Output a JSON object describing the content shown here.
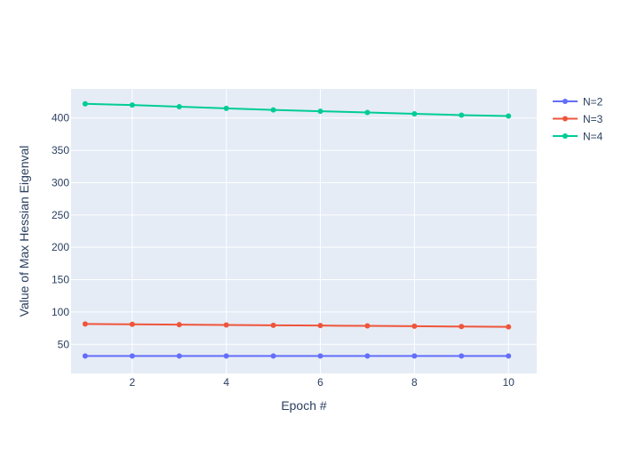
{
  "chart_data": {
    "type": "line",
    "title": "",
    "xlabel": "Epoch #",
    "ylabel": "Value of Max Hessian Eigenval",
    "xlim": [
      0.7,
      10.6
    ],
    "ylim": [
      5,
      445
    ],
    "xticks": [
      2,
      4,
      6,
      8,
      10
    ],
    "yticks": [
      50,
      100,
      150,
      200,
      250,
      300,
      350,
      400
    ],
    "grid": true,
    "legend_position": "top-right",
    "x": [
      1,
      2,
      3,
      4,
      5,
      6,
      7,
      8,
      9,
      10
    ],
    "series": [
      {
        "name": "N=2",
        "color": "#636efa",
        "values": [
          32,
          32,
          32,
          32,
          32,
          32,
          32,
          32,
          32,
          32
        ]
      },
      {
        "name": "N=3",
        "color": "#ef553b",
        "values": [
          81.5,
          81,
          80.5,
          80,
          79.5,
          79,
          78.5,
          78,
          77.5,
          77
        ]
      },
      {
        "name": "N=4",
        "color": "#00cc96",
        "values": [
          422,
          420,
          417.5,
          415,
          412.5,
          410.5,
          408.5,
          406.5,
          404.5,
          403
        ]
      }
    ],
    "colors": {
      "plot_bg": "#e5ecf6",
      "grid": "#ffffff",
      "text": "#2a3f5f"
    }
  }
}
